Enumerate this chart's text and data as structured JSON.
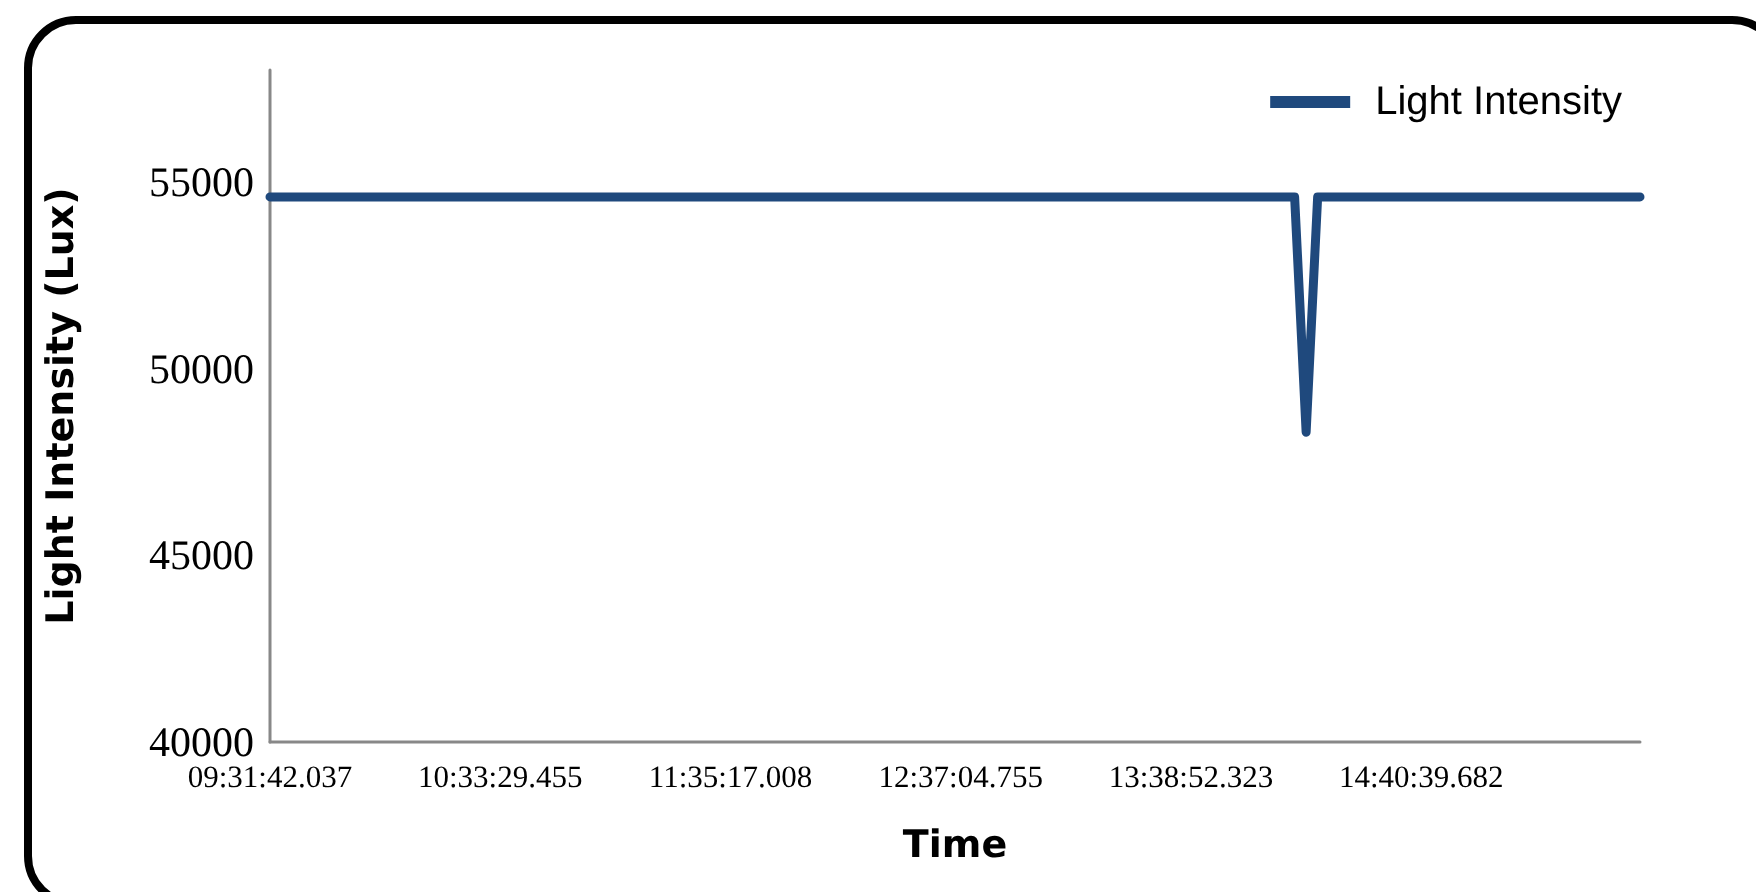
{
  "chart_data": {
    "type": "line",
    "xlabel": "Time",
    "ylabel": "Light Intensity (Lux)",
    "categories": [
      "09:31:42.037",
      null,
      null,
      null,
      null,
      null,
      null,
      null,
      null,
      null,
      null,
      null,
      null,
      null,
      null,
      null,
      null,
      null,
      null,
      null,
      "10:33:29.455",
      null,
      null,
      null,
      null,
      null,
      null,
      null,
      null,
      null,
      null,
      null,
      null,
      null,
      null,
      null,
      null,
      null,
      null,
      null,
      "11:35:17.008",
      null,
      null,
      null,
      null,
      null,
      null,
      null,
      null,
      null,
      null,
      null,
      null,
      null,
      null,
      null,
      null,
      null,
      null,
      null,
      "12:37:04.755",
      null,
      null,
      null,
      null,
      null,
      null,
      null,
      null,
      null,
      null,
      null,
      null,
      null,
      null,
      null,
      null,
      null,
      null,
      null,
      "13:38:52.323",
      null,
      null,
      null,
      null,
      null,
      null,
      null,
      null,
      null,
      null,
      null,
      null,
      null,
      null,
      null,
      null,
      null,
      null,
      null,
      "14:40:39.682",
      null,
      null,
      null,
      null,
      null,
      null,
      null,
      null,
      null,
      null,
      null,
      null,
      null,
      null,
      null,
      null,
      null,
      null,
      null
    ],
    "series": [
      {
        "name": "Light Intensity",
        "color": "#1f497d",
        "values": [
          54600,
          54600,
          54600,
          54600,
          54600,
          54600,
          54600,
          54600,
          54600,
          54600,
          54600,
          54600,
          54600,
          54600,
          54600,
          54600,
          54600,
          54600,
          54600,
          54600,
          54600,
          54600,
          54600,
          54600,
          54600,
          54600,
          54600,
          54600,
          54600,
          54600,
          54600,
          54600,
          54600,
          54600,
          54600,
          54600,
          54600,
          54600,
          54600,
          54600,
          54600,
          54600,
          54600,
          54600,
          54600,
          54600,
          54600,
          54600,
          54600,
          54600,
          54600,
          54600,
          54600,
          54600,
          54600,
          54600,
          54600,
          54600,
          54600,
          54600,
          54600,
          54600,
          54600,
          54600,
          54600,
          54600,
          54600,
          54600,
          54600,
          54600,
          54600,
          54600,
          54600,
          54600,
          54600,
          54600,
          54600,
          54600,
          54600,
          54600,
          54600,
          54600,
          54600,
          54600,
          54600,
          54600,
          54600,
          54600,
          54600,
          54600,
          48300,
          54600,
          54600,
          54600,
          54600,
          54600,
          54600,
          54600,
          54600,
          54600,
          54600,
          54600,
          54600,
          54600,
          54600,
          54600,
          54600,
          54600,
          54600,
          54600,
          54600,
          54600,
          54600,
          54600,
          54600,
          54600,
          54600,
          54600,
          54600,
          54600
        ]
      }
    ],
    "ylim": [
      40000,
      58000
    ],
    "yticks": [
      40000,
      45000,
      50000,
      55000
    ],
    "grid": false,
    "legend": "top right",
    "marker": "none",
    "line_style": "solid"
  }
}
